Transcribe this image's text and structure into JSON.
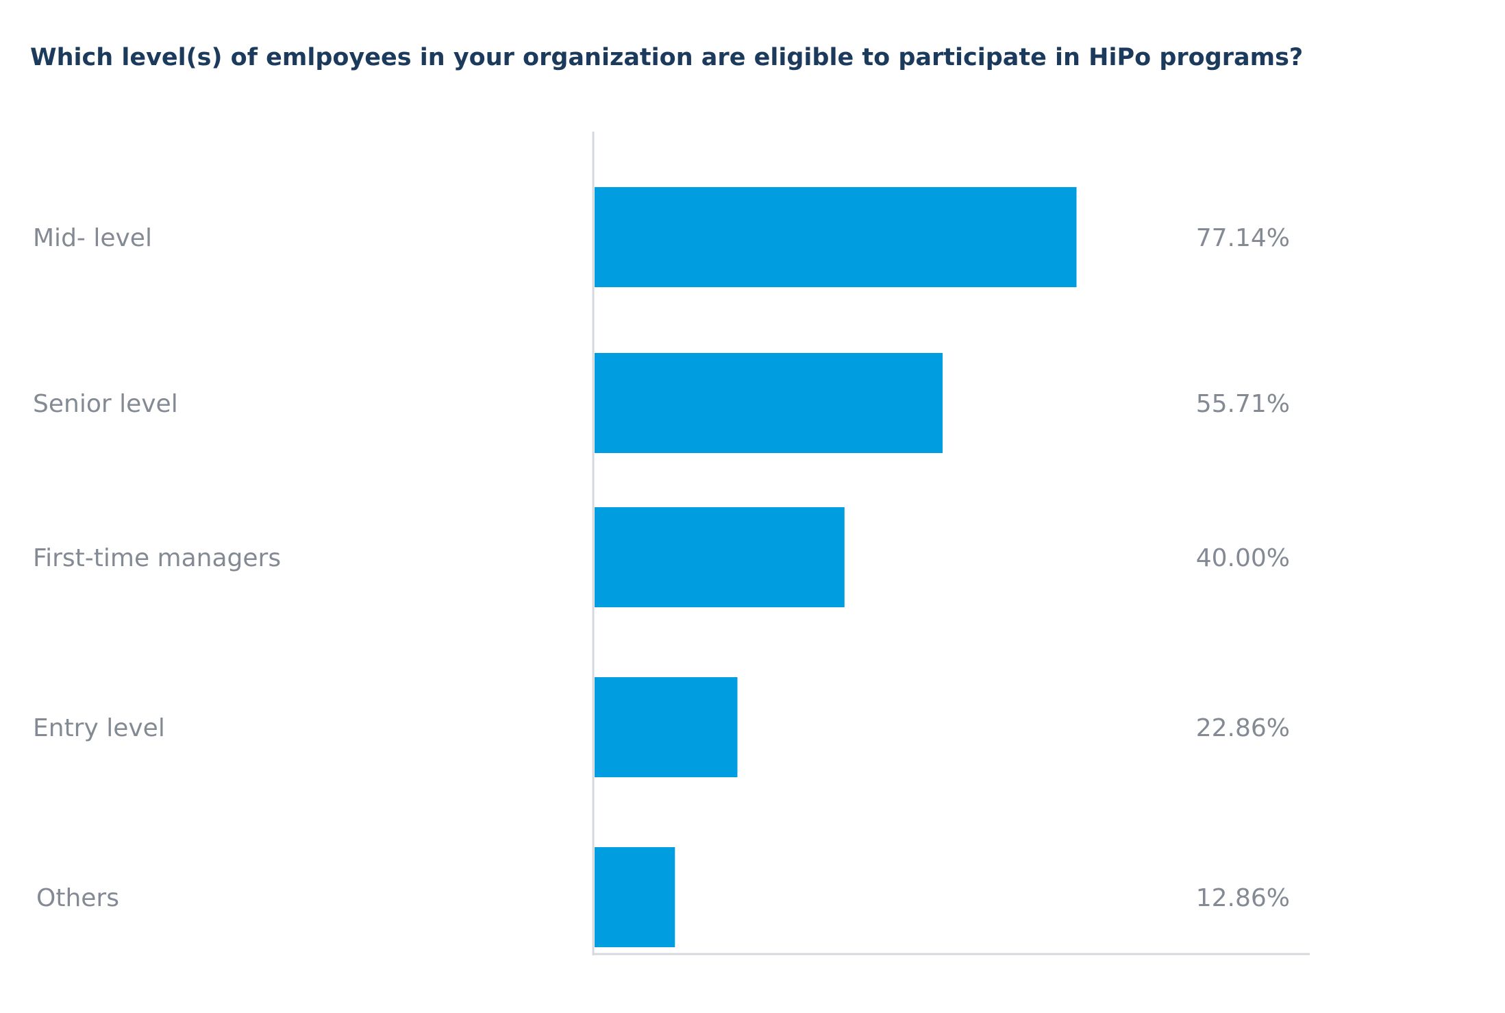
{
  "chart_data": {
    "type": "bar",
    "orientation": "horizontal",
    "title": "Which level(s) of emlpoyees in your organization are eligible to participate in HiPo programs?",
    "categories": [
      "Mid- level",
      "Senior level",
      "First-time managers",
      "Entry level",
      "Others"
    ],
    "values": [
      77.14,
      55.71,
      40.0,
      22.86,
      12.86
    ],
    "value_labels": [
      "77.14%",
      "55.71%",
      "40.00%",
      "22.86%",
      "12.86%"
    ],
    "xlabel": "",
    "ylabel": "",
    "xlim": [
      0,
      100
    ],
    "grid": false,
    "legend": "none",
    "colors": {
      "bar": "#009de0",
      "title": "#1b3a5c",
      "labels": "#848a93",
      "axis": "#d5d8de"
    }
  }
}
